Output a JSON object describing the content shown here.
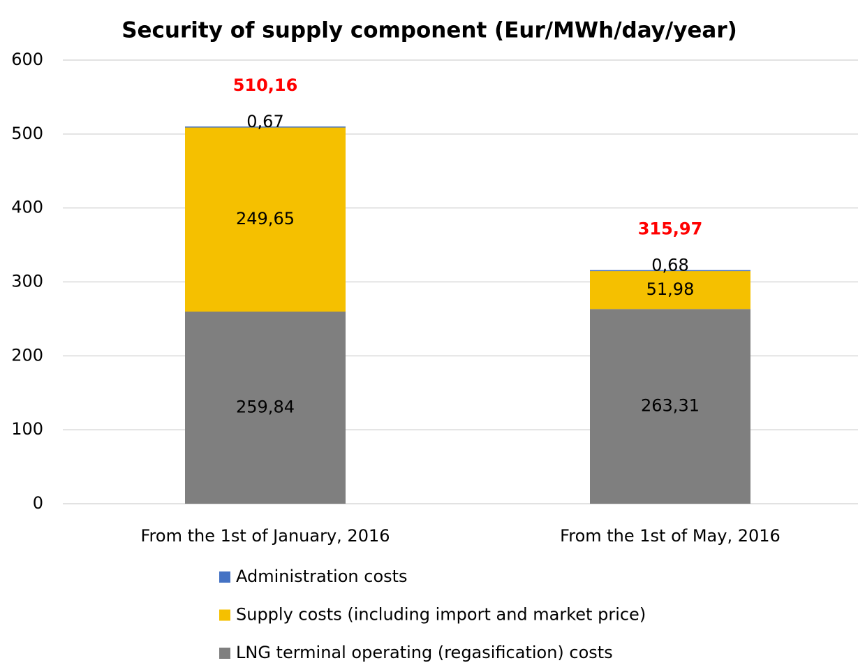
{
  "chart_data": {
    "type": "stacked_bar",
    "title": "Security of supply  component (Eur/MWh/day/year)",
    "categories": [
      "From the 1st of January, 2016",
      "From the 1st of May, 2016"
    ],
    "series": [
      {
        "name": "LNG terminal operating (regasification) costs",
        "color": "#7f7f7f",
        "values": [
          259.84,
          263.31
        ],
        "value_labels": [
          "259,84",
          "263,31"
        ]
      },
      {
        "name": "Supply costs (including import and market price)",
        "color": "#f5c000",
        "values": [
          249.65,
          51.98
        ],
        "value_labels": [
          "249,65",
          "51,98"
        ]
      },
      {
        "name": "Administration costs",
        "color": "#4472c4",
        "values": [
          0.67,
          0.68
        ],
        "value_labels": [
          "0,67",
          "0,68"
        ]
      }
    ],
    "totals": [
      510.16,
      315.97
    ],
    "total_labels": [
      "510,16",
      "315,97"
    ],
    "total_color": "#ff0000",
    "ylim": [
      0,
      600
    ],
    "yticks": [
      0,
      100,
      200,
      300,
      400,
      500,
      600
    ],
    "grid": true,
    "legend": "bottom"
  }
}
